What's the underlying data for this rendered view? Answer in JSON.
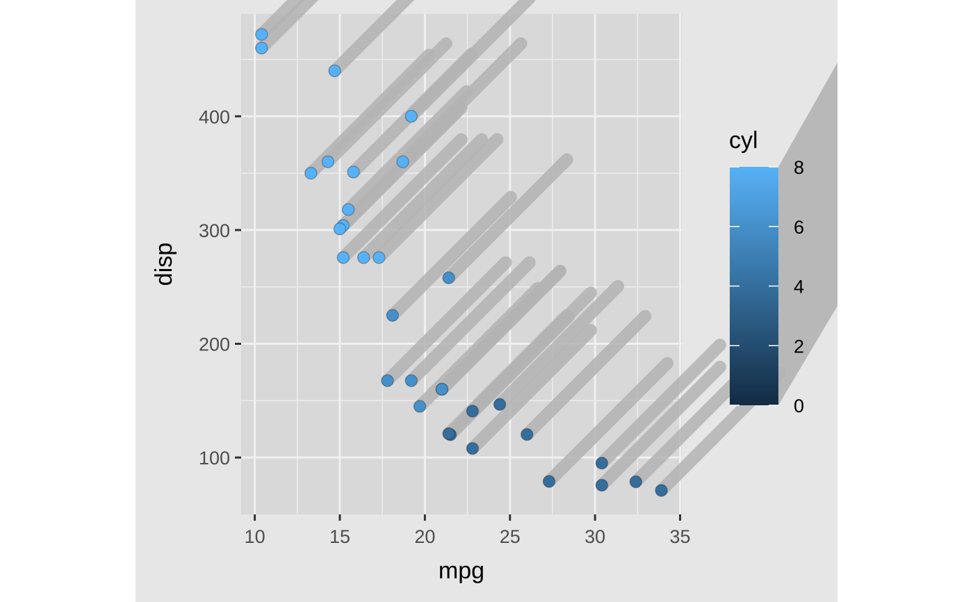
{
  "chart_data": {
    "type": "scatter",
    "title": "",
    "xlabel": "mpg",
    "ylabel": "disp",
    "xlim": [
      9.2,
      35.1
    ],
    "ylim": [
      50,
      490
    ],
    "xticks": [
      10,
      15,
      20,
      25,
      30,
      35
    ],
    "yticks": [
      100,
      200,
      300,
      400
    ],
    "grid": true,
    "shadow": "diagonal grey trail toward upper-right behind each point",
    "legend": {
      "title": "cyl",
      "type": "colorbar",
      "position": "right",
      "range": [
        0,
        8
      ],
      "ticks": [
        0,
        2,
        4,
        6,
        8
      ],
      "color_low": "#132B43",
      "color_high": "#56B1F7"
    },
    "points": [
      {
        "x": 21.0,
        "y": 160,
        "cyl": 6
      },
      {
        "x": 21.0,
        "y": 160,
        "cyl": 6
      },
      {
        "x": 22.8,
        "y": 108,
        "cyl": 4
      },
      {
        "x": 21.4,
        "y": 258,
        "cyl": 6
      },
      {
        "x": 18.7,
        "y": 360,
        "cyl": 8
      },
      {
        "x": 18.1,
        "y": 225,
        "cyl": 6
      },
      {
        "x": 14.3,
        "y": 360,
        "cyl": 8
      },
      {
        "x": 24.4,
        "y": 146.7,
        "cyl": 4
      },
      {
        "x": 22.8,
        "y": 140.8,
        "cyl": 4
      },
      {
        "x": 19.2,
        "y": 167.6,
        "cyl": 6
      },
      {
        "x": 17.8,
        "y": 167.6,
        "cyl": 6
      },
      {
        "x": 16.4,
        "y": 275.8,
        "cyl": 8
      },
      {
        "x": 17.3,
        "y": 275.8,
        "cyl": 8
      },
      {
        "x": 15.2,
        "y": 275.8,
        "cyl": 8
      },
      {
        "x": 10.4,
        "y": 472,
        "cyl": 8
      },
      {
        "x": 10.4,
        "y": 460,
        "cyl": 8
      },
      {
        "x": 14.7,
        "y": 440,
        "cyl": 8
      },
      {
        "x": 32.4,
        "y": 78.7,
        "cyl": 4
      },
      {
        "x": 30.4,
        "y": 75.7,
        "cyl": 4
      },
      {
        "x": 33.9,
        "y": 71.1,
        "cyl": 4
      },
      {
        "x": 21.5,
        "y": 120.1,
        "cyl": 4
      },
      {
        "x": 15.5,
        "y": 318,
        "cyl": 8
      },
      {
        "x": 15.2,
        "y": 304,
        "cyl": 8
      },
      {
        "x": 13.3,
        "y": 350,
        "cyl": 8
      },
      {
        "x": 19.2,
        "y": 400,
        "cyl": 8
      },
      {
        "x": 27.3,
        "y": 79,
        "cyl": 4
      },
      {
        "x": 26.0,
        "y": 120.3,
        "cyl": 4
      },
      {
        "x": 30.4,
        "y": 95.1,
        "cyl": 4
      },
      {
        "x": 15.8,
        "y": 351,
        "cyl": 8
      },
      {
        "x": 19.7,
        "y": 145,
        "cyl": 6
      },
      {
        "x": 15.0,
        "y": 301,
        "cyl": 8
      },
      {
        "x": 21.4,
        "y": 121,
        "cyl": 4
      }
    ]
  }
}
